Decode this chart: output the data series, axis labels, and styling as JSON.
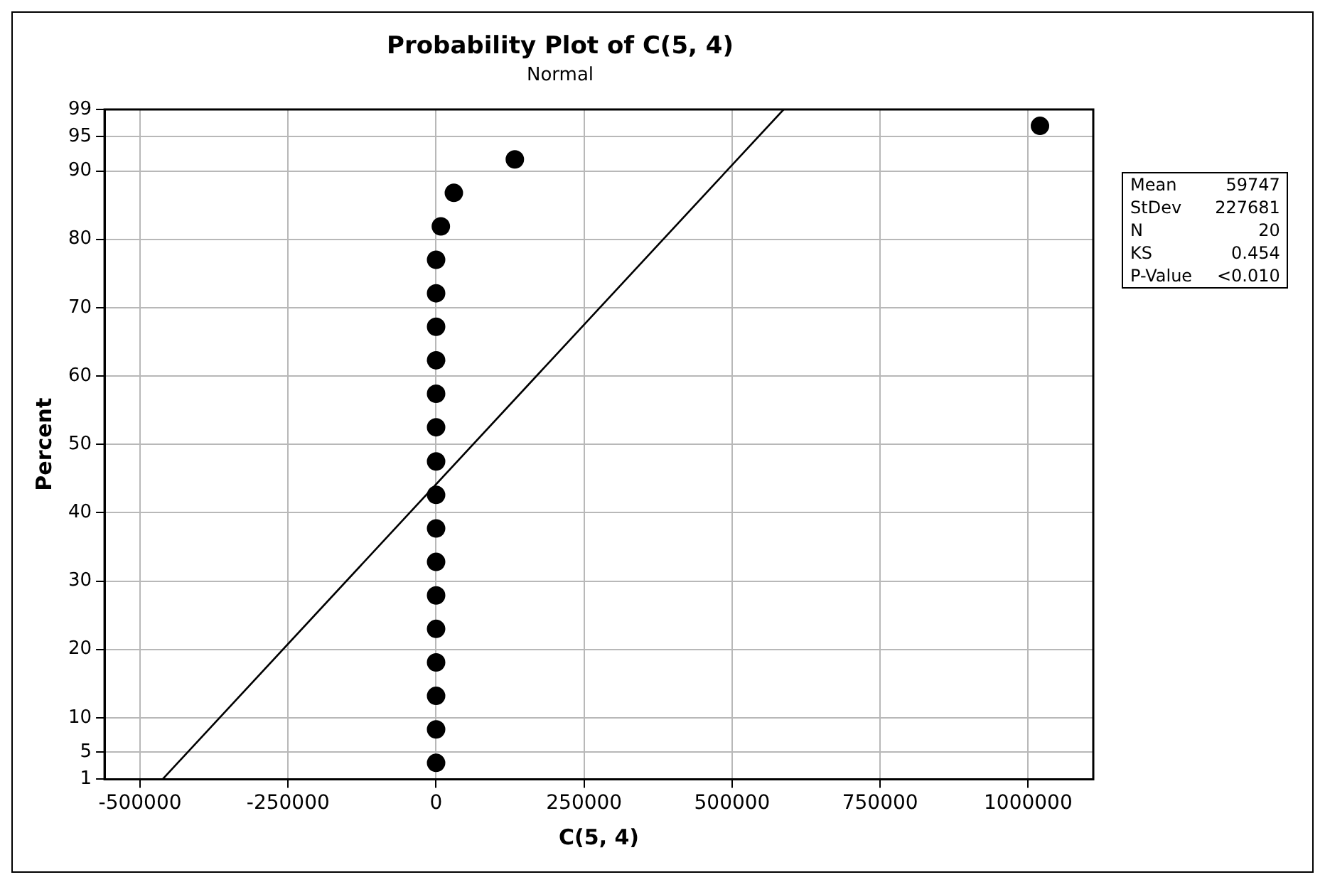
{
  "chart_data": {
    "type": "scatter",
    "title": "Probability Plot of C(5, 4)",
    "subtitle": "Normal",
    "xlabel": "C(5, 4)",
    "ylabel": "Percent",
    "x": [
      0,
      0,
      0,
      0,
      0,
      0,
      0,
      0,
      0,
      0,
      0,
      0,
      0,
      0,
      0,
      0,
      8000,
      30000,
      133000,
      1020000
    ],
    "series": [
      {
        "color": "#000000",
        "values": [
          3.4,
          8.3,
          13.2,
          18.1,
          23.0,
          27.9,
          32.8,
          37.7,
          42.6,
          47.5,
          52.5,
          57.4,
          62.3,
          67.2,
          72.1,
          77.0,
          81.9,
          86.8,
          91.7,
          96.6
        ]
      },
      {
        "type": "line",
        "color": "#000000",
        "marker": "none",
        "x": [
          -462000,
          587000
        ],
        "values": [
          1,
          99
        ]
      }
    ],
    "xlim": [
      -560000,
      1110000
    ],
    "xticks": [
      -500000,
      -250000,
      0,
      250000,
      500000,
      750000,
      1000000
    ],
    "ylim": [
      1,
      99
    ],
    "yticks": [
      1,
      5,
      10,
      20,
      30,
      40,
      50,
      60,
      70,
      80,
      90,
      95,
      99
    ],
    "grid": true,
    "legend": false,
    "marker": "circle",
    "line_style": "solid",
    "annotations": [
      "Mean 59747",
      "StDev 227681",
      "N 20",
      "KS 0.454",
      "P-Value <0.010"
    ]
  }
}
